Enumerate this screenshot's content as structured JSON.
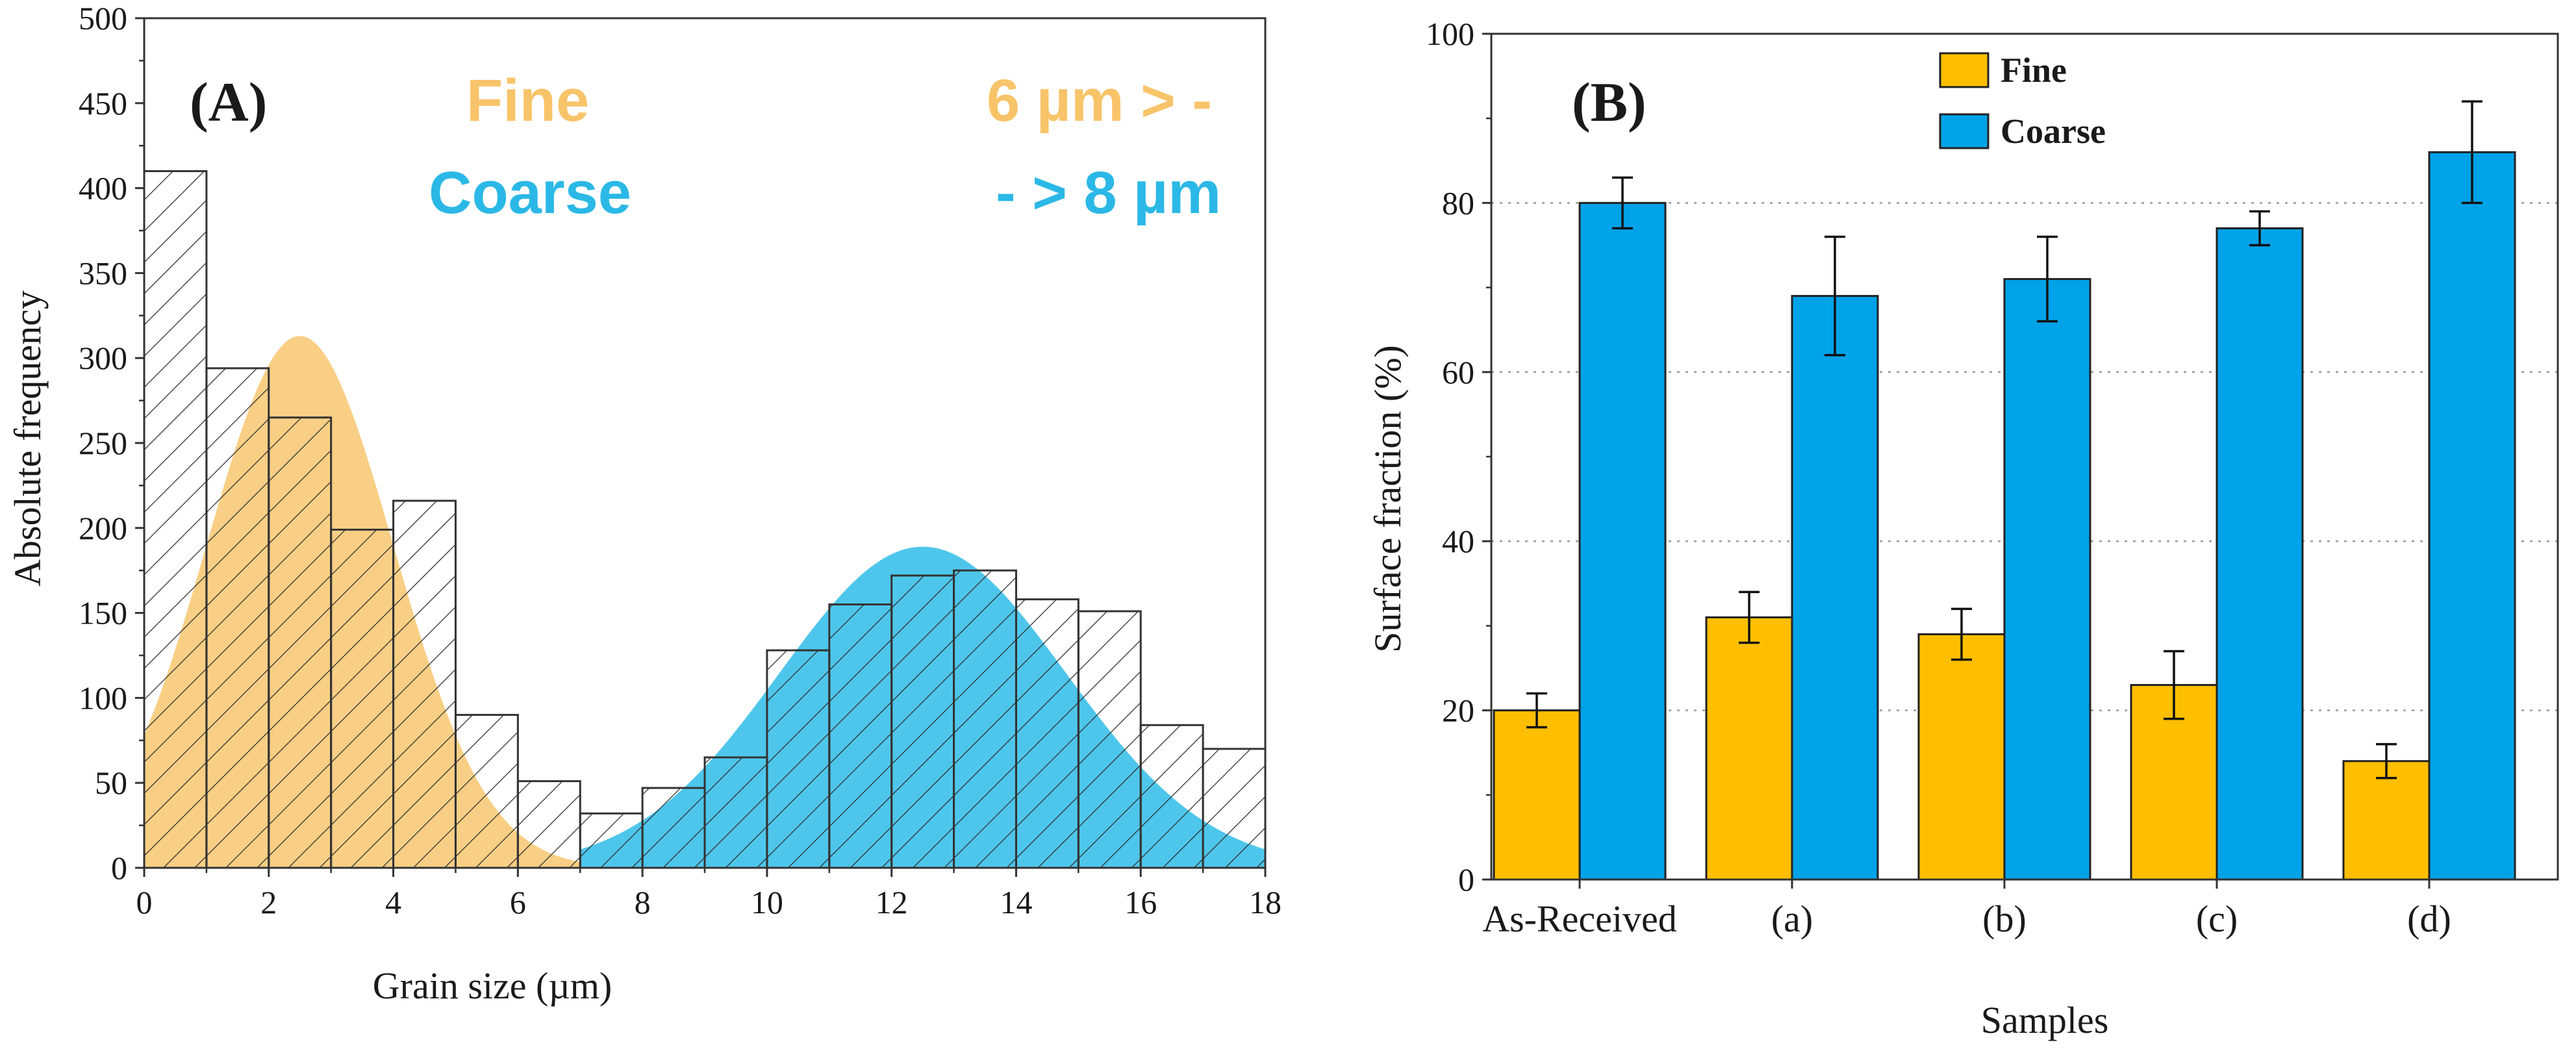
{
  "chart_data": [
    {
      "panel": "(A)",
      "type": "bar",
      "subtype": "histogram with fitted distributions",
      "xlabel": "Grain size (µm)",
      "ylabel": "Absolute frequency",
      "xlim": [
        0,
        18
      ],
      "ylim": [
        0,
        500
      ],
      "xticks": [
        "0",
        "2",
        "4",
        "6",
        "8",
        "10",
        "12",
        "14",
        "16",
        "18"
      ],
      "yticks": [
        "0",
        "50",
        "100",
        "150",
        "200",
        "250",
        "300",
        "350",
        "400",
        "450",
        "500"
      ],
      "bins": [
        {
          "from": 0,
          "to": 1,
          "value": 410
        },
        {
          "from": 1,
          "to": 2,
          "value": 294
        },
        {
          "from": 2,
          "to": 3,
          "value": 265
        },
        {
          "from": 3,
          "to": 4,
          "value": 199
        },
        {
          "from": 4,
          "to": 5,
          "value": 216
        },
        {
          "from": 5,
          "to": 6,
          "value": 90
        },
        {
          "from": 6,
          "to": 7,
          "value": 51
        },
        {
          "from": 7,
          "to": 8,
          "value": 32
        },
        {
          "from": 8,
          "to": 9,
          "value": 47
        },
        {
          "from": 9,
          "to": 10,
          "value": 65
        },
        {
          "from": 10,
          "to": 11,
          "value": 128
        },
        {
          "from": 11,
          "to": 12,
          "value": 155
        },
        {
          "from": 12,
          "to": 13,
          "value": 172
        },
        {
          "from": 13,
          "to": 14,
          "value": 175
        },
        {
          "from": 14,
          "to": 15,
          "value": 158
        },
        {
          "from": 15,
          "to": 16,
          "value": 151
        },
        {
          "from": 16,
          "to": 17,
          "value": 84
        },
        {
          "from": 17,
          "to": 18,
          "value": 70
        }
      ],
      "fits": [
        {
          "name": "Fine",
          "peak_x": 2.5,
          "peak_y": 313,
          "sigma": 1.5,
          "start_x": 0,
          "end_x": 7,
          "color": "#f9cc7e"
        },
        {
          "name": "Coarse",
          "peak_x": 12.5,
          "peak_y": 189,
          "sigma": 2.3,
          "start_x": 7,
          "end_x": 18,
          "color": "#45c3ea"
        }
      ],
      "annotations": {
        "label": "(A)",
        "fine": "Fine",
        "coarse": "Coarse",
        "fine_range": "6 µm > -",
        "coarse_range": "- > 8 µm"
      },
      "colors": {
        "fine_text": "#f8c46a",
        "coarse_text": "#2bb8e6"
      }
    },
    {
      "panel": "(B)",
      "type": "bar",
      "subtype": "grouped bar with error bars",
      "xlabel": "Samples",
      "ylabel": "Surface fraction (%)",
      "ylim": [
        0,
        100
      ],
      "yticks": [
        "0",
        "20",
        "40",
        "60",
        "80",
        "100"
      ],
      "categories": [
        "As-Received",
        "(a)",
        "(b)",
        "(c)",
        "(d)"
      ],
      "series": [
        {
          "name": "Fine",
          "color": "#ffbf00",
          "values": [
            20,
            31,
            29,
            23,
            14
          ],
          "errors": [
            2,
            3,
            3,
            4,
            2
          ]
        },
        {
          "name": "Coarse",
          "color": "#00a2e8",
          "values": [
            80,
            69,
            71,
            77,
            86
          ],
          "errors": [
            3,
            7,
            5,
            2,
            6
          ]
        }
      ],
      "gridlines": [
        20,
        40,
        60,
        80
      ],
      "label": "(B)",
      "legend_position": "top-center"
    }
  ]
}
